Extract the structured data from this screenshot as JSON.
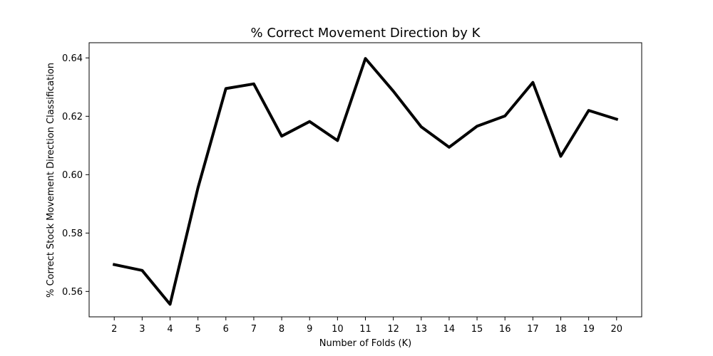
{
  "chart_data": {
    "type": "line",
    "title": "% Correct Movement Direction by K",
    "xlabel": "Number of Folds (K)",
    "ylabel": "% Correct Stock Movement Direction Classification",
    "x": [
      2,
      3,
      4,
      5,
      6,
      7,
      8,
      9,
      10,
      11,
      12,
      13,
      14,
      15,
      16,
      17,
      18,
      19,
      20
    ],
    "series": [
      {
        "values": [
          0.5692,
          0.5672,
          0.5556,
          0.5955,
          0.6295,
          0.6311,
          0.6132,
          0.6182,
          0.6117,
          0.6398,
          0.6286,
          0.6164,
          0.6094,
          0.6166,
          0.6201,
          0.6316,
          0.6063,
          0.622,
          0.619
        ],
        "color": "#000000"
      }
    ],
    "xlim": [
      1.1,
      20.9
    ],
    "ylim": [
      0.5513,
      0.6452
    ],
    "yticks": [
      0.56,
      0.58,
      0.6,
      0.62,
      0.64
    ],
    "ytick_labels": [
      "0.56",
      "0.58",
      "0.60",
      "0.62",
      "0.64"
    ],
    "xticks": [
      2,
      3,
      4,
      5,
      6,
      7,
      8,
      9,
      10,
      11,
      12,
      13,
      14,
      15,
      16,
      17,
      18,
      19,
      20
    ],
    "xtick_labels": [
      "2",
      "3",
      "4",
      "5",
      "6",
      "7",
      "8",
      "9",
      "10",
      "11",
      "12",
      "13",
      "14",
      "15",
      "16",
      "17",
      "18",
      "19",
      "20"
    ],
    "grid": false,
    "legend": "none"
  }
}
